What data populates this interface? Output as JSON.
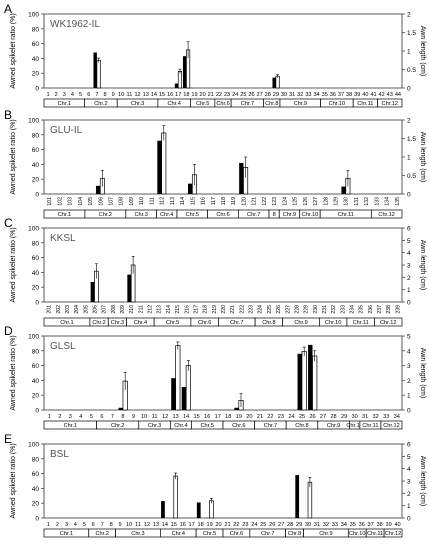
{
  "figure": {
    "y_left_label": "Awned spikelet ratio (%)",
    "y_right_label": "Awn length (cm)"
  },
  "chart_data": [
    {
      "type": "bar",
      "panel": "A",
      "title": "WK1962-IL",
      "categories": [
        "1",
        "2",
        "3",
        "4",
        "5",
        "6",
        "7",
        "8",
        "9",
        "10",
        "11",
        "12",
        "13",
        "14",
        "15",
        "16",
        "17",
        "18",
        "19",
        "20",
        "21",
        "22",
        "23",
        "24",
        "25",
        "26",
        "27",
        "28",
        "29",
        "30",
        "31",
        "32",
        "33",
        "34",
        "35",
        "36",
        "37",
        "38",
        "39",
        "40",
        "41",
        "42",
        "43",
        "44"
      ],
      "ylim": [
        0,
        100
      ],
      "y_ticks": [
        0,
        20,
        40,
        60,
        80,
        100
      ],
      "y2lim": [
        0,
        2
      ],
      "y2_ticks": [
        "0",
        "0.5",
        "1",
        "1.5",
        "2"
      ],
      "chromosome_labels": [
        "Chr.1",
        "Chr.2",
        "Chr.3",
        "Chr.4",
        "Chr.5",
        "Chr.6",
        "Chr.7",
        "Chr.8",
        "Chr.9",
        "Chr.10",
        "Chr.11",
        "Chr.12"
      ],
      "chromosome_spans": [
        [
          1,
          5
        ],
        [
          6,
          9
        ],
        [
          10,
          14
        ],
        [
          15,
          18
        ],
        [
          19,
          21
        ],
        [
          22,
          23
        ],
        [
          24,
          27
        ],
        [
          28,
          29
        ],
        [
          30,
          34
        ],
        [
          35,
          38
        ],
        [
          39,
          41
        ],
        [
          42,
          44
        ]
      ],
      "series": [
        {
          "values": [
            0,
            0,
            0,
            0,
            0,
            0,
            48,
            0,
            0,
            0,
            0,
            0,
            0,
            0,
            0,
            0,
            6,
            43,
            0,
            0,
            0,
            0,
            0,
            0,
            0,
            0,
            0,
            0,
            14,
            0,
            0,
            0,
            0,
            0,
            0,
            0,
            0,
            0,
            0,
            0,
            0,
            0,
            0,
            0
          ]
        },
        {
          "values": [
            0,
            0,
            0,
            0,
            0,
            0,
            0.75,
            0,
            0,
            0,
            0,
            0,
            0,
            0,
            0,
            0,
            0.45,
            1.03,
            0,
            0,
            0,
            0,
            0,
            0,
            0,
            0,
            0,
            0,
            0.32,
            0,
            0,
            0,
            0,
            0,
            0,
            0,
            0,
            0,
            0,
            0,
            0,
            0,
            0,
            0
          ],
          "errors": [
            0,
            0,
            0,
            0,
            0,
            0,
            0.06,
            0,
            0,
            0,
            0,
            0,
            0,
            0,
            0,
            0,
            0.06,
            0.22,
            0,
            0,
            0,
            0,
            0,
            0,
            0,
            0,
            0,
            0,
            0.04,
            0,
            0,
            0,
            0,
            0,
            0,
            0,
            0,
            0,
            0,
            0,
            0,
            0,
            0,
            0
          ]
        }
      ]
    },
    {
      "type": "bar",
      "panel": "B",
      "title": "GLU-IL",
      "categories": [
        "101",
        "102",
        "103",
        "104",
        "105",
        "106",
        "107",
        "108",
        "109",
        "110",
        "111",
        "112",
        "113",
        "114",
        "115",
        "116",
        "117",
        "118",
        "119",
        "120",
        "121",
        "122",
        "123",
        "124",
        "125",
        "126",
        "127",
        "128",
        "129",
        "130",
        "131",
        "132",
        "133",
        "134",
        "135"
      ],
      "ylim": [
        0,
        100
      ],
      "y_ticks": [
        0,
        20,
        40,
        60,
        80,
        100
      ],
      "y2lim": [
        0,
        2
      ],
      "y2_ticks": [
        "0",
        "0.5",
        "1",
        "1.5",
        "2"
      ],
      "chromosome_labels": [
        "Chr.1",
        "Chr.2",
        "Chr.3",
        "Chr.4",
        "Chr.5",
        "Chr.6",
        "Chr.7",
        "8",
        "Chr.9",
        "Chr.10",
        "Chr.11",
        "Chr.12"
      ],
      "chromosome_spans": [
        [
          1,
          4
        ],
        [
          5,
          8
        ],
        [
          9,
          11
        ],
        [
          12,
          13
        ],
        [
          14,
          16
        ],
        [
          17,
          19
        ],
        [
          20,
          22
        ],
        [
          23,
          23
        ],
        [
          24,
          25
        ],
        [
          26,
          27
        ],
        [
          28,
          32
        ],
        [
          33,
          35
        ]
      ],
      "series": [
        {
          "values": [
            0,
            0,
            0,
            0,
            0,
            11,
            0,
            0,
            0,
            0,
            0,
            72,
            0,
            0,
            14,
            0,
            0,
            0,
            0,
            42,
            0,
            0,
            0,
            0,
            0,
            0,
            0,
            0,
            0,
            10,
            0,
            0,
            0,
            0,
            0
          ]
        },
        {
          "values": [
            0,
            0,
            0,
            0,
            0,
            0.42,
            0,
            0,
            0,
            0,
            0,
            1.65,
            0,
            0,
            0.52,
            0,
            0,
            0,
            0,
            0.72,
            0,
            0,
            0,
            0,
            0,
            0,
            0,
            0,
            0,
            0.42,
            0,
            0,
            0,
            0,
            0
          ],
          "errors": [
            0,
            0,
            0,
            0,
            0,
            0.22,
            0,
            0,
            0,
            0,
            0,
            0.2,
            0,
            0,
            0.28,
            0,
            0,
            0,
            0,
            0.28,
            0,
            0,
            0,
            0,
            0,
            0,
            0,
            0,
            0,
            0.22,
            0,
            0,
            0,
            0,
            0
          ]
        }
      ]
    },
    {
      "type": "bar",
      "panel": "C",
      "title": "KKSL",
      "categories": [
        "201",
        "202",
        "203",
        "204",
        "205",
        "206",
        "207",
        "208",
        "209",
        "210",
        "211",
        "212",
        "213",
        "214",
        "215",
        "216",
        "217",
        "218",
        "219",
        "220",
        "221",
        "222",
        "223",
        "224",
        "225",
        "226",
        "227",
        "228",
        "229",
        "230",
        "231",
        "232",
        "233",
        "234",
        "235",
        "236",
        "237",
        "238",
        "239"
      ],
      "ylim": [
        0,
        100
      ],
      "y_ticks": [
        0,
        20,
        40,
        60,
        80,
        100
      ],
      "y2lim": [
        0,
        6
      ],
      "y2_ticks": [
        "0",
        "1",
        "2",
        "3",
        "4",
        "5",
        "6"
      ],
      "chromosome_labels": [
        "Chr.1",
        "Chr.2",
        "Chr.3",
        "Chr.4",
        "Chr.5",
        "Chr.6",
        "Chr.7",
        "Chr.8",
        "Chr.9",
        "Chr.10",
        "Chr.11",
        "Chr.12"
      ],
      "chromosome_spans": [
        [
          1,
          5
        ],
        [
          6,
          7
        ],
        [
          8,
          9
        ],
        [
          10,
          12
        ],
        [
          13,
          16
        ],
        [
          17,
          19
        ],
        [
          20,
          23
        ],
        [
          24,
          26
        ],
        [
          27,
          30
        ],
        [
          31,
          33
        ],
        [
          34,
          36
        ],
        [
          37,
          39
        ]
      ],
      "series": [
        {
          "values": [
            0,
            0,
            0,
            0,
            0,
            27,
            0,
            0,
            0,
            37,
            0,
            0,
            0,
            0,
            0,
            0,
            0,
            0,
            0,
            0,
            0,
            0,
            0,
            0,
            0,
            0,
            0,
            0,
            0,
            0,
            0,
            0,
            0,
            0,
            0,
            0,
            0,
            0,
            0
          ]
        },
        {
          "values": [
            0,
            0,
            0,
            0,
            0,
            2.5,
            0,
            0,
            0,
            3.0,
            0,
            0,
            0,
            0,
            0,
            0,
            0,
            0,
            0,
            0,
            0,
            0,
            0,
            0,
            0,
            0,
            0,
            0,
            0,
            0,
            0,
            0,
            0,
            0,
            0,
            0,
            0,
            0,
            0
          ],
          "errors": [
            0,
            0,
            0,
            0,
            0,
            0.6,
            0,
            0,
            0,
            0.7,
            0,
            0,
            0,
            0,
            0,
            0,
            0,
            0,
            0,
            0,
            0,
            0,
            0,
            0,
            0,
            0,
            0,
            0,
            0,
            0,
            0,
            0,
            0,
            0,
            0,
            0,
            0,
            0,
            0
          ]
        }
      ]
    },
    {
      "type": "bar",
      "panel": "D",
      "title": "GLSL",
      "categories": [
        "1",
        "2",
        "3",
        "4",
        "5",
        "6",
        "7",
        "8",
        "9",
        "10",
        "11",
        "12",
        "13",
        "14",
        "15",
        "16",
        "17",
        "18",
        "19",
        "20",
        "21",
        "22",
        "23",
        "24",
        "25",
        "26",
        "27",
        "28",
        "29",
        "30",
        "31",
        "32",
        "33",
        "34"
      ],
      "ylim": [
        0,
        100
      ],
      "y_ticks": [
        0,
        20,
        40,
        60,
        80,
        100
      ],
      "y2lim": [
        0,
        5
      ],
      "y2_ticks": [
        "0",
        "1",
        "2",
        "3",
        "4",
        "5"
      ],
      "chromosome_labels": [
        "Chr.1",
        "Chr.2",
        "Chr.3",
        "Chr.4",
        "Chr.5",
        "Chr.6",
        "Chr.7",
        "Chr.8",
        "Chr.9",
        "Chr.10",
        "Chr.11",
        "Chr.12"
      ],
      "chromosome_spans": [
        [
          1,
          5
        ],
        [
          6,
          9
        ],
        [
          10,
          12
        ],
        [
          13,
          14
        ],
        [
          15,
          17
        ],
        [
          18,
          20
        ],
        [
          21,
          23
        ],
        [
          24,
          26
        ],
        [
          27,
          29
        ],
        [
          30,
          30
        ],
        [
          31,
          32
        ],
        [
          33,
          34
        ]
      ],
      "series": [
        {
          "values": [
            0,
            0,
            0,
            0,
            0,
            0,
            0,
            3,
            0,
            0,
            0,
            0,
            43,
            31,
            0,
            0,
            0,
            0,
            3,
            0,
            0,
            0,
            0,
            0,
            76,
            88,
            0,
            0,
            0,
            0,
            0,
            0,
            0,
            0
          ]
        },
        {
          "values": [
            0,
            0,
            0,
            0,
            0,
            0,
            0,
            1.95,
            0,
            0,
            0,
            0,
            4.35,
            3.0,
            0,
            0,
            0,
            0,
            0.65,
            0,
            0,
            0,
            0,
            0,
            3.95,
            3.65,
            0,
            0,
            0,
            0,
            0,
            0,
            0,
            0
          ],
          "errors": [
            0,
            0,
            0,
            0,
            0,
            0,
            0,
            0.6,
            0,
            0,
            0,
            0,
            0.25,
            0.35,
            0,
            0,
            0,
            0,
            0.45,
            0,
            0,
            0,
            0,
            0,
            0.3,
            0.35,
            0,
            0,
            0,
            0,
            0,
            0,
            0,
            0
          ]
        }
      ]
    },
    {
      "type": "bar",
      "panel": "E",
      "title": "BSL",
      "categories": [
        "1",
        "2",
        "3",
        "4",
        "5",
        "6",
        "7",
        "8",
        "9",
        "10",
        "11",
        "12",
        "13",
        "14",
        "15",
        "16",
        "17",
        "18",
        "19",
        "20",
        "21",
        "22",
        "23",
        "24",
        "25",
        "26",
        "27",
        "28",
        "29",
        "30",
        "31",
        "32",
        "33",
        "34",
        "35",
        "36",
        "37",
        "38",
        "39",
        "40"
      ],
      "ylim": [
        0,
        100
      ],
      "y_ticks": [
        0,
        20,
        40,
        60,
        80,
        100
      ],
      "y2lim": [
        0,
        6
      ],
      "y2_ticks": [
        "0",
        "1",
        "2",
        "3",
        "4",
        "5",
        "6"
      ],
      "chromosome_labels": [
        "Chr.1",
        "Chr.2",
        "Chr.3",
        "Chr.4",
        "Chr.5",
        "Chr.6",
        "Chr.7",
        "Chr.8",
        "Chr.9",
        "Chr.10",
        "Chr.11",
        "Chr.12"
      ],
      "chromosome_spans": [
        [
          1,
          5
        ],
        [
          6,
          8
        ],
        [
          9,
          13
        ],
        [
          14,
          17
        ],
        [
          18,
          20
        ],
        [
          21,
          23
        ],
        [
          24,
          27
        ],
        [
          28,
          29
        ],
        [
          30,
          34
        ],
        [
          35,
          36
        ],
        [
          37,
          38
        ],
        [
          39,
          40
        ]
      ],
      "series": [
        {
          "values": [
            0,
            0,
            0,
            0,
            0,
            0,
            0,
            0,
            0,
            0,
            0,
            0,
            0,
            23,
            0,
            0,
            0,
            21,
            0,
            0,
            0,
            0,
            0,
            0,
            0,
            0,
            0,
            0,
            58,
            0,
            0,
            0,
            0,
            0,
            0,
            0,
            0,
            0,
            0,
            0
          ]
        },
        {
          "values": [
            0,
            0,
            0,
            0,
            0,
            0,
            0,
            0,
            0,
            0,
            0,
            0,
            0,
            0,
            3.4,
            0,
            0,
            0,
            1.4,
            0,
            0,
            0,
            0,
            0,
            0,
            0,
            0,
            0,
            0,
            2.9,
            0,
            0,
            0,
            0,
            0,
            0,
            0,
            0,
            0,
            0
          ],
          "errors": [
            0,
            0,
            0,
            0,
            0,
            0,
            0,
            0,
            0,
            0,
            0,
            0,
            0,
            0,
            0.25,
            0,
            0,
            0,
            0.2,
            0,
            0,
            0,
            0,
            0,
            0,
            0,
            0,
            0,
            0,
            0.4,
            0,
            0,
            0,
            0,
            0,
            0,
            0,
            0,
            0,
            0
          ]
        }
      ]
    }
  ]
}
